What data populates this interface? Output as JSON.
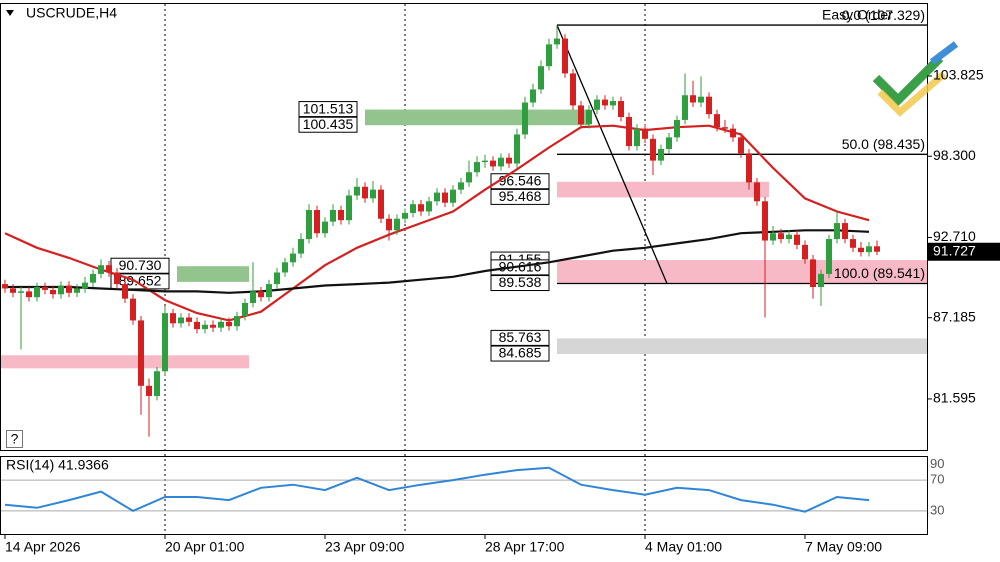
{
  "chart_data": {
    "type": "candlestick",
    "title": "USCRUDE,H4",
    "tool_label": "Easy Order",
    "help_label": "?",
    "xlim": [
      -0.625,
      115.25
    ],
    "ylim": [
      78.08,
      108.78
    ],
    "xticks": [
      {
        "value": 0,
        "label": "14 Apr 2026"
      },
      {
        "value": 20,
        "label": "20 Apr 01:00"
      },
      {
        "value": 40,
        "label": "23 Apr 09:00"
      },
      {
        "value": 60,
        "label": "28 Apr 17:00"
      },
      {
        "value": 80,
        "label": "4 May 01:00"
      },
      {
        "value": 100,
        "label": "7 May 09:00"
      }
    ],
    "separators": [
      20,
      50,
      80
    ],
    "yticks": [
      103.825,
      {
        "value": 98.3,
        "label": "98.300"
      },
      {
        "value": 92.71,
        "label": "92.710"
      },
      87.185,
      81.595
    ],
    "last_price": 91.727,
    "up_color": "#2e9e3e",
    "down_color": "#d42020",
    "candles": [
      [
        89.5,
        89.8,
        88.9,
        89.2
      ],
      [
        89.2,
        89.5,
        88.6,
        88.9
      ],
      [
        88.9,
        89.3,
        85.0,
        89.0
      ],
      [
        89.0,
        89.3,
        88.3,
        88.6
      ],
      [
        88.6,
        89.6,
        88.3,
        89.3
      ],
      [
        89.3,
        89.6,
        88.8,
        89.1
      ],
      [
        89.1,
        89.4,
        88.5,
        88.8
      ],
      [
        88.8,
        89.7,
        88.5,
        89.4
      ],
      [
        89.4,
        89.7,
        88.6,
        88.9
      ],
      [
        88.9,
        89.5,
        88.6,
        89.2
      ],
      [
        89.2,
        90.0,
        88.9,
        89.6
      ],
      [
        89.6,
        90.5,
        89.3,
        90.2
      ],
      [
        90.2,
        91.2,
        89.9,
        90.8
      ],
      [
        90.8,
        91.1,
        90.0,
        90.3
      ],
      [
        90.3,
        90.6,
        89.2,
        89.5
      ],
      [
        89.5,
        89.8,
        88.2,
        88.5
      ],
      [
        88.5,
        88.8,
        86.7,
        87.0
      ],
      [
        87.0,
        87.3,
        80.5,
        82.5
      ],
      [
        82.5,
        83.0,
        79.0,
        81.8
      ],
      [
        81.8,
        83.8,
        81.5,
        83.5
      ],
      [
        83.5,
        88.0,
        83.2,
        87.5
      ],
      [
        87.5,
        87.8,
        86.5,
        86.8
      ],
      [
        86.8,
        87.5,
        86.5,
        87.2
      ],
      [
        87.2,
        87.5,
        86.6,
        86.9
      ],
      [
        86.9,
        87.2,
        86.1,
        86.4
      ],
      [
        86.4,
        87.0,
        86.1,
        86.7
      ],
      [
        86.7,
        87.0,
        86.2,
        86.5
      ],
      [
        86.5,
        87.2,
        86.2,
        86.9
      ],
      [
        86.9,
        87.2,
        86.3,
        86.6
      ],
      [
        86.6,
        87.6,
        86.3,
        87.3
      ],
      [
        87.3,
        88.5,
        87.0,
        88.2
      ],
      [
        88.2,
        91.0,
        87.9,
        89.0
      ],
      [
        89.0,
        89.3,
        88.3,
        88.6
      ],
      [
        88.6,
        89.8,
        88.3,
        89.5
      ],
      [
        89.5,
        90.6,
        89.2,
        90.3
      ],
      [
        90.3,
        91.3,
        90.0,
        91.0
      ],
      [
        91.0,
        92.0,
        90.7,
        91.6
      ],
      [
        91.6,
        93.0,
        91.3,
        92.6
      ],
      [
        92.6,
        95.0,
        92.3,
        94.6
      ],
      [
        94.6,
        94.9,
        92.7,
        93.0
      ],
      [
        93.0,
        94.1,
        92.7,
        93.8
      ],
      [
        93.8,
        95.0,
        93.5,
        94.6
      ],
      [
        94.6,
        94.9,
        93.6,
        93.9
      ],
      [
        93.9,
        96.0,
        93.6,
        95.6
      ],
      [
        95.6,
        96.8,
        95.3,
        96.2
      ],
      [
        96.2,
        96.5,
        95.1,
        95.4
      ],
      [
        95.4,
        96.6,
        95.1,
        96.0
      ],
      [
        96.0,
        96.3,
        93.7,
        94.0
      ],
      [
        94.0,
        94.3,
        92.5,
        93.2
      ],
      [
        93.2,
        94.3,
        92.9,
        94.0
      ],
      [
        94.0,
        94.7,
        93.7,
        94.4
      ],
      [
        94.4,
        95.3,
        94.1,
        95.0
      ],
      [
        95.0,
        95.3,
        94.2,
        94.5
      ],
      [
        94.5,
        95.5,
        94.2,
        95.2
      ],
      [
        95.2,
        96.1,
        94.9,
        95.8
      ],
      [
        95.8,
        96.1,
        94.8,
        95.1
      ],
      [
        95.1,
        96.3,
        94.8,
        96.0
      ],
      [
        96.0,
        96.8,
        95.7,
        96.5
      ],
      [
        96.5,
        98.0,
        96.2,
        97.2
      ],
      [
        97.2,
        98.3,
        96.9,
        97.9
      ],
      [
        97.9,
        98.4,
        97.5,
        98.0
      ],
      [
        98.0,
        98.3,
        97.3,
        97.6
      ],
      [
        97.6,
        98.5,
        97.3,
        98.2
      ],
      [
        98.2,
        98.5,
        97.5,
        97.8
      ],
      [
        97.8,
        100.2,
        97.5,
        99.8
      ],
      [
        99.8,
        102.4,
        99.5,
        102.0
      ],
      [
        102.0,
        103.3,
        101.7,
        102.9
      ],
      [
        102.9,
        104.9,
        102.6,
        104.5
      ],
      [
        104.5,
        106.4,
        104.2,
        106.0
      ],
      [
        106.0,
        107.329,
        105.7,
        106.4
      ],
      [
        106.4,
        106.7,
        103.7,
        104.0
      ],
      [
        104.0,
        104.3,
        101.5,
        101.8
      ],
      [
        101.8,
        102.1,
        100.2,
        100.5
      ],
      [
        100.5,
        101.8,
        100.2,
        101.5
      ],
      [
        101.5,
        102.5,
        101.2,
        102.2
      ],
      [
        102.2,
        102.5,
        101.5,
        101.8
      ],
      [
        101.8,
        102.4,
        101.5,
        102.1
      ],
      [
        102.1,
        102.4,
        100.7,
        101.0
      ],
      [
        101.0,
        101.3,
        98.7,
        99.0
      ],
      [
        99.0,
        100.5,
        98.7,
        100.2
      ],
      [
        100.2,
        100.5,
        99.2,
        99.5
      ],
      [
        99.5,
        99.8,
        97.0,
        98.0
      ],
      [
        98.0,
        99.1,
        97.7,
        98.8
      ],
      [
        98.8,
        99.9,
        98.5,
        99.6
      ],
      [
        99.6,
        101.1,
        99.3,
        100.8
      ],
      [
        100.8,
        104.0,
        100.5,
        102.5
      ],
      [
        102.5,
        103.5,
        101.7,
        102.0
      ],
      [
        102.0,
        103.8,
        101.7,
        102.4
      ],
      [
        102.4,
        102.7,
        100.9,
        101.2
      ],
      [
        101.2,
        101.5,
        100.0,
        100.3
      ],
      [
        100.3,
        100.8,
        99.9,
        100.2
      ],
      [
        100.2,
        100.5,
        99.3,
        99.6
      ],
      [
        99.6,
        99.9,
        98.2,
        98.5
      ],
      [
        98.5,
        98.8,
        96.0,
        96.5
      ],
      [
        96.5,
        96.8,
        94.9,
        95.2
      ],
      [
        95.2,
        95.5,
        87.2,
        92.5
      ],
      [
        92.5,
        93.5,
        92.2,
        93.0
      ],
      [
        93.0,
        93.3,
        92.3,
        92.6
      ],
      [
        92.6,
        93.2,
        92.3,
        92.9
      ],
      [
        92.9,
        93.2,
        91.9,
        92.2
      ],
      [
        92.2,
        92.5,
        90.9,
        91.2
      ],
      [
        91.2,
        91.5,
        88.5,
        89.3
      ],
      [
        89.3,
        90.5,
        88.0,
        90.2
      ],
      [
        90.2,
        92.9,
        89.9,
        92.6
      ],
      [
        92.6,
        94.5,
        92.3,
        93.7
      ],
      [
        93.7,
        94.0,
        92.3,
        92.6
      ],
      [
        92.6,
        92.9,
        91.7,
        92.0
      ],
      [
        92.0,
        92.4,
        91.4,
        91.7
      ],
      [
        91.7,
        92.4,
        91.4,
        92.1
      ],
      [
        92.1,
        92.5,
        91.5,
        91.727
      ]
    ],
    "zones": [
      {
        "range": [
          84.6,
          83.7
        ],
        "from": -0.625,
        "to": 30.5,
        "color": "#f7b9c6"
      },
      {
        "levels": [
          {
            "value": 90.73,
            "label": "90.730"
          },
          89.652
        ],
        "from": 21.5,
        "to": 30.5,
        "color": "#93c48e"
      },
      {
        "levels": [
          101.513,
          100.435
        ],
        "from": 45,
        "to": 73,
        "color": "#93c48e"
      },
      {
        "levels": [
          96.546,
          95.468
        ],
        "from": 69,
        "to": 95.5,
        "color": "#f7b9c6"
      },
      {
        "levels": [
          91.155,
          90.616,
          89.538
        ],
        "from": 69,
        "to": 115.25,
        "color": "#f7b9c6"
      },
      {
        "levels": [
          85.763,
          84.685
        ],
        "from": 69,
        "to": 115.25,
        "color": "#d6d6d6"
      }
    ],
    "fib": {
      "from": 69,
      "diag_to": 82.75,
      "levels": [
        {
          "value": 107.329,
          "label": "0.0 (107.329)"
        },
        {
          "value": 98.435,
          "label": "50.0 (98.435)"
        },
        {
          "value": 89.541,
          "label": "100.0 (89.541)"
        }
      ]
    },
    "lines": [
      {
        "color": "#d42020",
        "x": [
          0,
          4,
          8,
          12,
          16,
          20,
          24,
          28,
          32,
          36,
          40,
          44,
          48,
          52,
          56,
          60,
          64,
          68,
          72,
          76,
          80,
          84,
          88,
          92,
          96,
          100,
          104,
          108
        ],
        "values": [
          93.0,
          92.0,
          91.3,
          90.5,
          89.8,
          88.4,
          87.5,
          87.0,
          87.6,
          89.2,
          90.8,
          92.0,
          92.9,
          93.7,
          94.5,
          96.0,
          97.4,
          98.9,
          100.3,
          100.4,
          100.1,
          100.3,
          100.4,
          99.8,
          97.5,
          95.4,
          94.5,
          93.9
        ]
      },
      {
        "color": "#111111",
        "x": [
          0,
          4,
          8,
          12,
          16,
          20,
          24,
          28,
          32,
          36,
          40,
          44,
          48,
          52,
          56,
          60,
          64,
          68,
          72,
          76,
          80,
          84,
          88,
          92,
          96,
          100,
          104,
          108
        ],
        "values": [
          89.3,
          89.3,
          89.3,
          89.2,
          89.1,
          89.0,
          89.0,
          88.9,
          89.0,
          89.2,
          89.4,
          89.5,
          89.6,
          89.8,
          90.0,
          90.4,
          90.7,
          91.0,
          91.4,
          91.8,
          92.0,
          92.3,
          92.6,
          93.0,
          93.1,
          93.2,
          93.2,
          93.1
        ]
      }
    ],
    "rsi": {
      "label": "RSI(14) 41.9366",
      "color": "#2f86d6",
      "ylim": [
        0,
        100
      ],
      "yticks": [
        30,
        70,
        90
      ],
      "x": [
        0,
        4,
        8,
        12,
        16,
        20,
        24,
        28,
        32,
        36,
        40,
        44,
        48,
        52,
        56,
        60,
        64,
        68,
        72,
        76,
        80,
        84,
        88,
        92,
        96,
        100,
        104,
        108
      ],
      "values": [
        38,
        34,
        44,
        55,
        30,
        48,
        48,
        44,
        60,
        64,
        57,
        73,
        57,
        64,
        70,
        77,
        83,
        86,
        64,
        57,
        51,
        60,
        57,
        44,
        38,
        29,
        48,
        44
      ]
    }
  }
}
